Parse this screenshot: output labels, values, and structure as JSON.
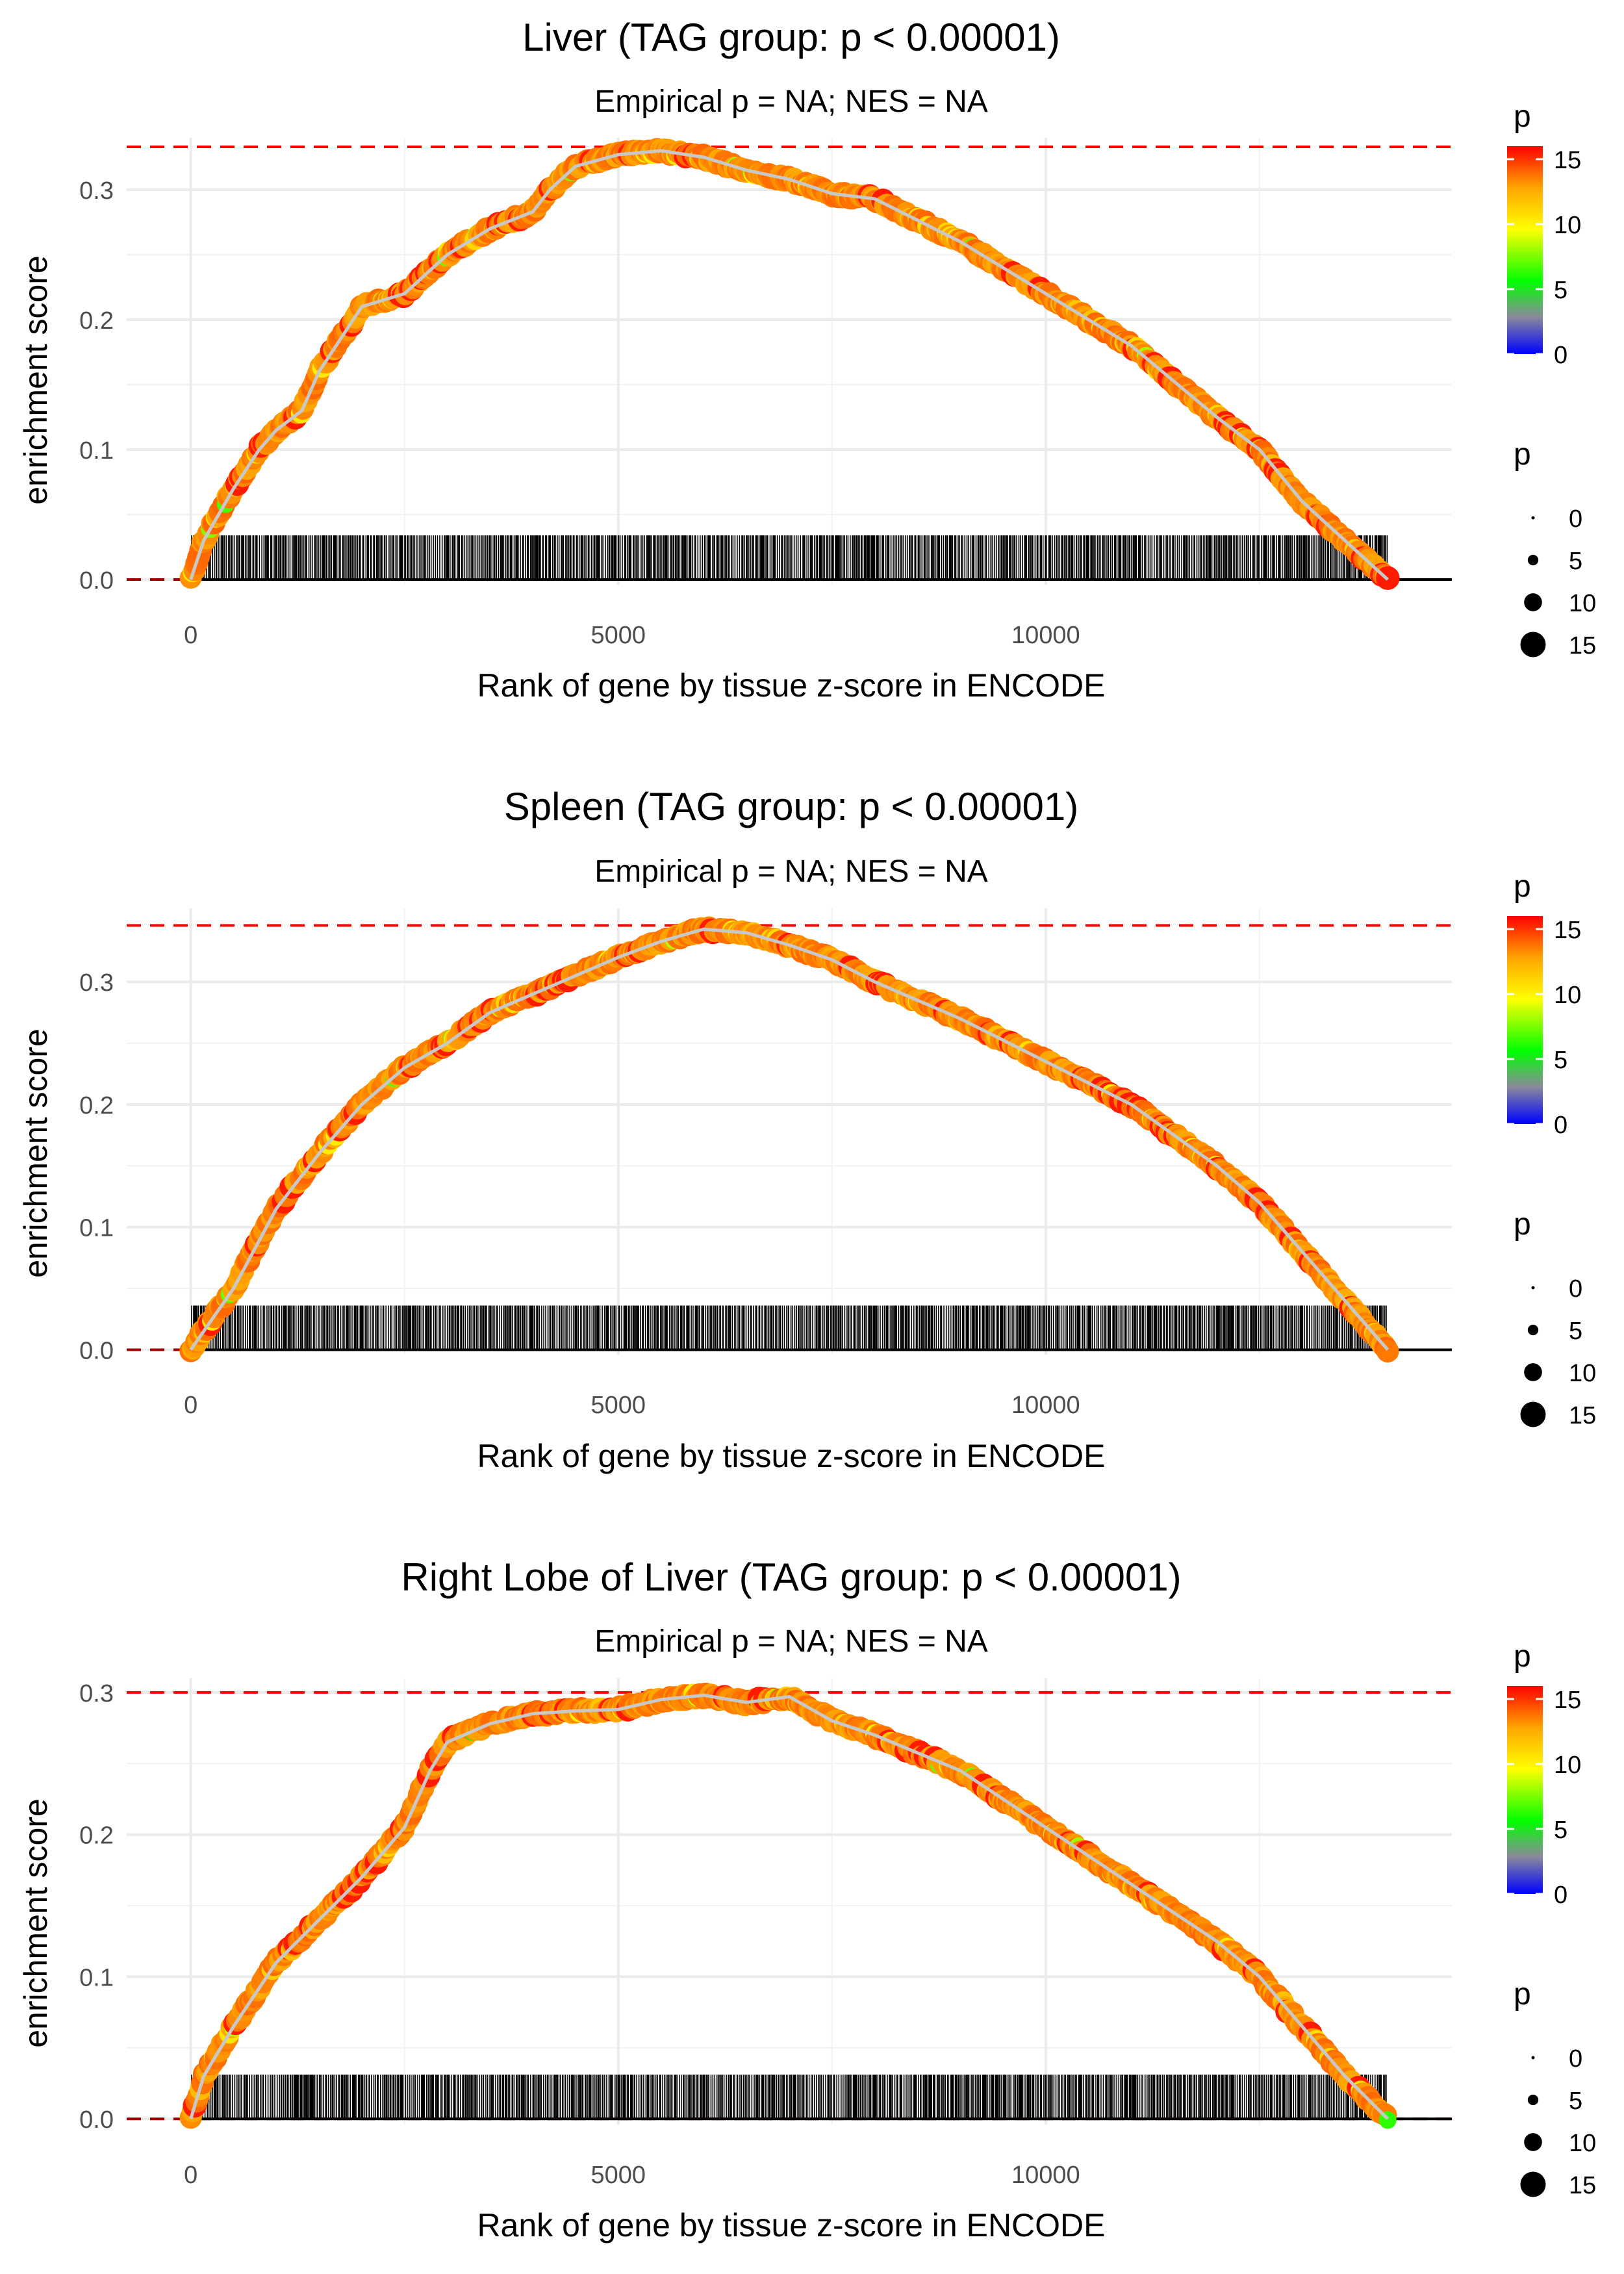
{
  "shared": {
    "x_label": "Rank of gene by tissue z-score in ENCODE",
    "y_label": "enrichment score",
    "subtitle": "Empirical p = NA; NES = NA",
    "x_ticks": [
      "0",
      "5000",
      "10000"
    ],
    "x_tick_values": [
      0,
      5000,
      10000
    ],
    "xlim": [
      -750,
      14750
    ],
    "n_genes": 14000,
    "colorbar": {
      "title": "p",
      "ticks": [
        "0",
        "5",
        "10",
        "15"
      ],
      "tick_values": [
        0,
        5,
        10,
        15
      ],
      "range": [
        0,
        16
      ],
      "colors": [
        "#0000ff",
        "#8a8a9a",
        "#00ff00",
        "#ffff00",
        "#ffa500",
        "#ff0000"
      ]
    },
    "size_legend": {
      "title": "p",
      "labels": [
        "0",
        "5",
        "10",
        "15"
      ],
      "values": [
        0,
        5,
        10,
        15
      ]
    },
    "line_color": "#c8c8c8",
    "max_line_color": "#ff0000"
  },
  "chart_data": [
    {
      "type": "scatter",
      "title": "Liver (TAG group: p < 0.00001)",
      "subtitle": "Empirical p = NA; NES = NA",
      "xlabel": "Rank of gene by tissue z-score in ENCODE",
      "ylabel": "enrichment score",
      "ylim": [
        -0.004,
        0.34
      ],
      "y_ticks": [
        "0.0",
        "0.1",
        "0.2",
        "0.3"
      ],
      "y_tick_values": [
        0.0,
        0.1,
        0.2,
        0.3
      ],
      "max_es": 0.333,
      "curve": {
        "x": [
          0,
          150,
          500,
          800,
          1000,
          1300,
          1500,
          1800,
          2000,
          2500,
          3000,
          3500,
          4000,
          4200,
          4500,
          5000,
          5500,
          6000,
          6500,
          7000,
          7500,
          8000,
          9000,
          10000,
          11000,
          12000,
          12500,
          13000,
          13500,
          13800,
          14000
        ],
        "y": [
          0.0,
          0.03,
          0.07,
          0.1,
          0.115,
          0.13,
          0.16,
          0.19,
          0.21,
          0.22,
          0.25,
          0.27,
          0.283,
          0.3,
          0.318,
          0.327,
          0.33,
          0.325,
          0.315,
          0.308,
          0.297,
          0.293,
          0.26,
          0.22,
          0.18,
          0.125,
          0.1,
          0.06,
          0.03,
          0.012,
          0.0
        ]
      }
    },
    {
      "type": "scatter",
      "title": "Spleen (TAG group: p < 0.00001)",
      "subtitle": "Empirical p = NA; NES = NA",
      "xlabel": "Rank of gene by tissue z-score in ENCODE",
      "ylabel": "enrichment score",
      "ylim": [
        -0.004,
        0.36
      ],
      "y_ticks": [
        "0.0",
        "0.1",
        "0.2",
        "0.3"
      ],
      "y_tick_values": [
        0.0,
        0.1,
        0.2,
        0.3
      ],
      "max_es": 0.346,
      "curve": {
        "x": [
          0,
          200,
          500,
          1000,
          1500,
          2000,
          2500,
          3000,
          3500,
          4000,
          4500,
          5000,
          5500,
          6000,
          6500,
          7000,
          7500,
          8000,
          9000,
          10000,
          11000,
          12000,
          12500,
          13000,
          13500,
          14000
        ],
        "y": [
          0.0,
          0.02,
          0.05,
          0.115,
          0.16,
          0.2,
          0.23,
          0.25,
          0.275,
          0.29,
          0.305,
          0.32,
          0.333,
          0.343,
          0.34,
          0.33,
          0.318,
          0.3,
          0.27,
          0.235,
          0.2,
          0.15,
          0.12,
          0.08,
          0.04,
          0.0
        ]
      }
    },
    {
      "type": "scatter",
      "title": "Right Lobe of Liver (TAG group: p < 0.00001)",
      "subtitle": "Empirical p = NA; NES = NA",
      "xlabel": "Rank of gene by tissue z-score in ENCODE",
      "ylabel": "enrichment score",
      "ylim": [
        -0.004,
        0.31
      ],
      "y_ticks": [
        "0.0",
        "0.1",
        "0.2",
        "0.3"
      ],
      "y_tick_values": [
        0.0,
        0.1,
        0.2,
        0.3
      ],
      "max_es": 0.3,
      "curve": {
        "x": [
          0,
          150,
          500,
          1000,
          1500,
          2000,
          2500,
          2800,
          3000,
          3500,
          4000,
          4500,
          5000,
          5500,
          6000,
          6500,
          7000,
          7500,
          8000,
          9000,
          10000,
          11000,
          12000,
          12500,
          13000,
          13500,
          14000
        ],
        "y": [
          0.0,
          0.03,
          0.065,
          0.11,
          0.14,
          0.17,
          0.205,
          0.245,
          0.265,
          0.278,
          0.285,
          0.287,
          0.288,
          0.295,
          0.298,
          0.293,
          0.297,
          0.28,
          0.27,
          0.245,
          0.205,
          0.165,
          0.125,
          0.1,
          0.065,
          0.03,
          0.0
        ]
      }
    }
  ]
}
